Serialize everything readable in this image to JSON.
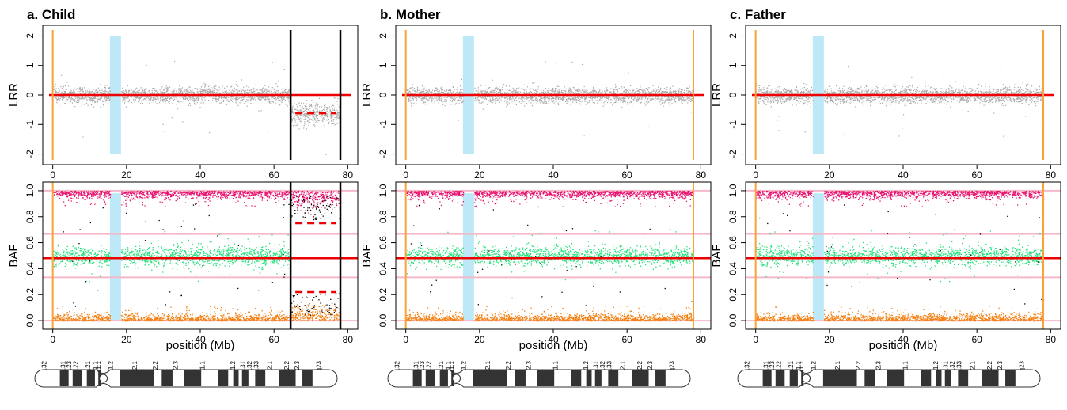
{
  "chart_data": [
    {
      "panel": "a",
      "title": "a. Child",
      "type": "scatter",
      "lrr": {
        "ylabel": "LRR",
        "ylim": [
          -2.2,
          2.2
        ],
        "yticks": [
          -2,
          -1,
          0,
          1,
          2
        ],
        "baseline": 0,
        "segment": {
          "x": [
            64.5,
            78
          ],
          "y": -0.62
        }
      },
      "baf": {
        "ylabel": "BAF",
        "ylim": [
          -0.03,
          1.03
        ],
        "yticks": [
          0.0,
          0.2,
          0.4,
          0.6,
          0.8,
          1.0
        ],
        "ref_lines": [
          0.0,
          0.333,
          0.667,
          1.0
        ],
        "baseline": 0.48,
        "segments": [
          {
            "x": [
              64.5,
              78
            ],
            "y": 0.75
          },
          {
            "x": [
              64.5,
              78
            ],
            "y": 0.22
          }
        ]
      },
      "xlabel": "position (Mb)",
      "xlim": [
        -1,
        81
      ],
      "xticks": [
        0,
        20,
        40,
        60,
        80
      ],
      "highlight_region": [
        15.5,
        18.5
      ],
      "boundary_lines": [
        {
          "x": 0,
          "color": "#f9a23c"
        },
        {
          "x": 64.5,
          "color": "#000000"
        },
        {
          "x": 78,
          "color": "#000000"
        }
      ],
      "deletion_region": [
        64.5,
        78
      ]
    },
    {
      "panel": "b",
      "title": "b. Mother",
      "type": "scatter",
      "lrr": {
        "ylabel": "LRR",
        "ylim": [
          -2.2,
          2.2
        ],
        "yticks": [
          -2,
          -1,
          0,
          1,
          2
        ],
        "baseline": 0
      },
      "baf": {
        "ylabel": "BAF",
        "ylim": [
          -0.03,
          1.03
        ],
        "yticks": [
          0.0,
          0.2,
          0.4,
          0.6,
          0.8,
          1.0
        ],
        "ref_lines": [
          0.0,
          0.333,
          0.667,
          1.0
        ],
        "baseline": 0.48
      },
      "xlabel": "position (Mb)",
      "xlim": [
        -1,
        81
      ],
      "xticks": [
        0,
        20,
        40,
        60,
        80
      ],
      "highlight_region": [
        15.5,
        18.5
      ],
      "boundary_lines": [
        {
          "x": 0,
          "color": "#f9a23c"
        },
        {
          "x": 78,
          "color": "#f9a23c"
        }
      ]
    },
    {
      "panel": "c",
      "title": "c. Father",
      "type": "scatter",
      "lrr": {
        "ylabel": "LRR",
        "ylim": [
          -2.2,
          2.2
        ],
        "yticks": [
          -2,
          -1,
          0,
          1,
          2
        ],
        "baseline": 0
      },
      "baf": {
        "ylabel": "BAF",
        "ylim": [
          -0.03,
          1.03
        ],
        "yticks": [
          0.0,
          0.2,
          0.4,
          0.6,
          0.8,
          1.0
        ],
        "ref_lines": [
          0.0,
          0.333,
          0.667,
          1.0
        ],
        "baseline": 0.48
      },
      "xlabel": "position (Mb)",
      "xlim": [
        -1,
        81
      ],
      "xticks": [
        0,
        20,
        40,
        60,
        80
      ],
      "highlight_region": [
        15.5,
        18.5
      ],
      "boundary_lines": [
        {
          "x": 0,
          "color": "#f9a23c"
        },
        {
          "x": 78,
          "color": "#f9a23c"
        }
      ]
    }
  ],
  "ideogram": {
    "bands": [
      "p11.32",
      "p11.31",
      "p11.23",
      "p11.22",
      "p11.21",
      "p11.1",
      "q11.1",
      "q11.2",
      "q12.1",
      "q12.2",
      "q12.3",
      "q21.1",
      "q21.2",
      "q21.31",
      "q21.32",
      "q21.33",
      "q22.1",
      "q22.2",
      "q22.3",
      "q23"
    ]
  },
  "colors": {
    "lrr_points": "#a8a8a8",
    "baf_high": "#e8106e",
    "baf_mid": "#22e07a",
    "baf_low": "#f57e10",
    "baseline": "#ee0000",
    "ref_line": "#f5b8c8",
    "highlight": "#bde8f7"
  }
}
